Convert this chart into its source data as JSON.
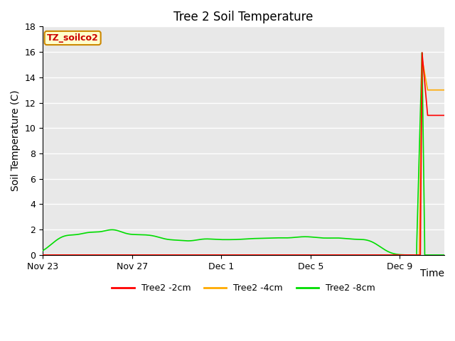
{
  "title": "Tree 2 Soil Temperature",
  "xlabel": "Time",
  "ylabel": "Soil Temperature (C)",
  "ylim": [
    0,
    18
  ],
  "yticks": [
    0,
    2,
    4,
    6,
    8,
    10,
    12,
    14,
    16,
    18
  ],
  "xtick_labels": [
    "Nov 23",
    "Nov 27",
    "Dec 1",
    "Dec 5",
    "Dec 9"
  ],
  "plot_bg_color": "#e8e8e8",
  "grid_color": "white",
  "legend_labels": [
    "Tree2 -2cm",
    "Tree2 -4cm",
    "Tree2 -8cm"
  ],
  "legend_colors": [
    "#ff0000",
    "#ffaa00",
    "#00dd00"
  ],
  "annotation_text": "TZ_soilco2",
  "annotation_bg": "#ffffcc",
  "annotation_border": "#cc8800",
  "title_fontsize": 12,
  "axis_label_fontsize": 10,
  "tick_fontsize": 9
}
